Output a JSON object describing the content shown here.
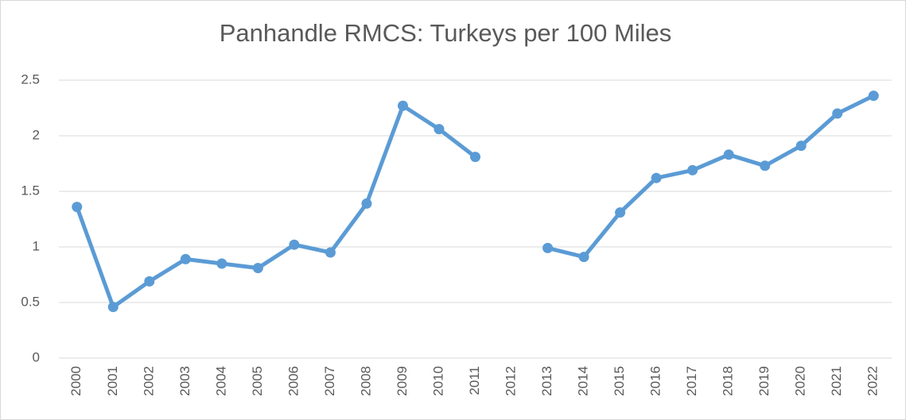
{
  "chart_data": {
    "type": "line",
    "title": "Panhandle RMCS: Turkeys per 100 Miles",
    "categories": [
      "2000",
      "2001",
      "2002",
      "2003",
      "2004",
      "2005",
      "2006",
      "2007",
      "2008",
      "2009",
      "2010",
      "2011",
      "2012",
      "2013",
      "2014",
      "2015",
      "2016",
      "2017",
      "2018",
      "2019",
      "2020",
      "2021",
      "2022"
    ],
    "series": [
      {
        "name": "Turkeys per 100 Miles",
        "color": "#5b9bd5",
        "values": [
          1.36,
          0.46,
          0.69,
          0.89,
          0.85,
          0.81,
          1.02,
          0.95,
          1.39,
          2.27,
          2.06,
          1.81,
          null,
          0.99,
          0.91,
          1.31,
          1.62,
          1.69,
          1.83,
          1.73,
          1.91,
          2.2,
          2.36
        ]
      }
    ],
    "ylim": [
      0,
      2.5
    ],
    "yticks": [
      0,
      0.5,
      1,
      1.5,
      2,
      2.5
    ],
    "grid": true,
    "legend": false
  }
}
